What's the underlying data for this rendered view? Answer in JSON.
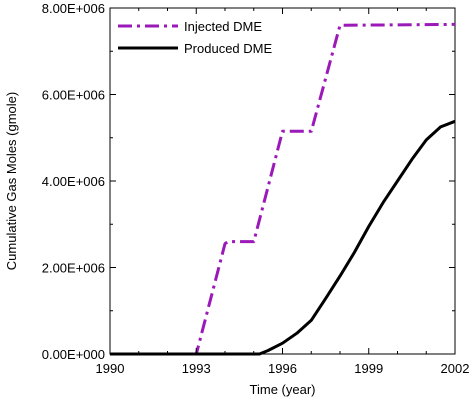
{
  "chart_data": {
    "type": "line",
    "title": "",
    "xlabel": "Time (year)",
    "ylabel": "Cumulative Gas Moles (gmole)",
    "xlim": [
      1990,
      2002
    ],
    "ylim": [
      0,
      8000000
    ],
    "x_ticks": [
      1990,
      1993,
      1996,
      1999,
      2002
    ],
    "x_tick_labels": [
      "1990",
      "1993",
      "1996",
      "1999",
      "2002"
    ],
    "y_ticks": [
      0,
      2000000,
      4000000,
      6000000,
      8000000
    ],
    "y_tick_labels": [
      "0.00E+000",
      "2.00E+006",
      "4.00E+006",
      "6.00E+006",
      "8.00E+006"
    ],
    "grid": false,
    "legend_position": "top-left",
    "series": [
      {
        "name": "Injected DME",
        "color": "#9b19b8",
        "style": "dash-dot",
        "points": [
          [
            1990,
            0
          ],
          [
            1993,
            0
          ],
          [
            1994,
            2550000
          ],
          [
            1994.1,
            2600000
          ],
          [
            1995,
            2600000
          ],
          [
            1996,
            5150000
          ],
          [
            1996.1,
            5150000
          ],
          [
            1997,
            5150000
          ],
          [
            1998,
            7600000
          ],
          [
            2002,
            7620000
          ]
        ]
      },
      {
        "name": "Produced DME",
        "color": "#000000",
        "style": "solid",
        "points": [
          [
            1990,
            0
          ],
          [
            1995.2,
            0
          ],
          [
            1995.5,
            80000
          ],
          [
            1996,
            250000
          ],
          [
            1996.5,
            480000
          ],
          [
            1997,
            780000
          ],
          [
            1997.5,
            1280000
          ],
          [
            1998,
            1800000
          ],
          [
            1998.5,
            2350000
          ],
          [
            1999,
            2950000
          ],
          [
            1999.5,
            3500000
          ],
          [
            2000,
            4000000
          ],
          [
            2000.5,
            4500000
          ],
          [
            2001,
            4950000
          ],
          [
            2001.5,
            5250000
          ],
          [
            2002,
            5380000
          ]
        ]
      }
    ]
  }
}
